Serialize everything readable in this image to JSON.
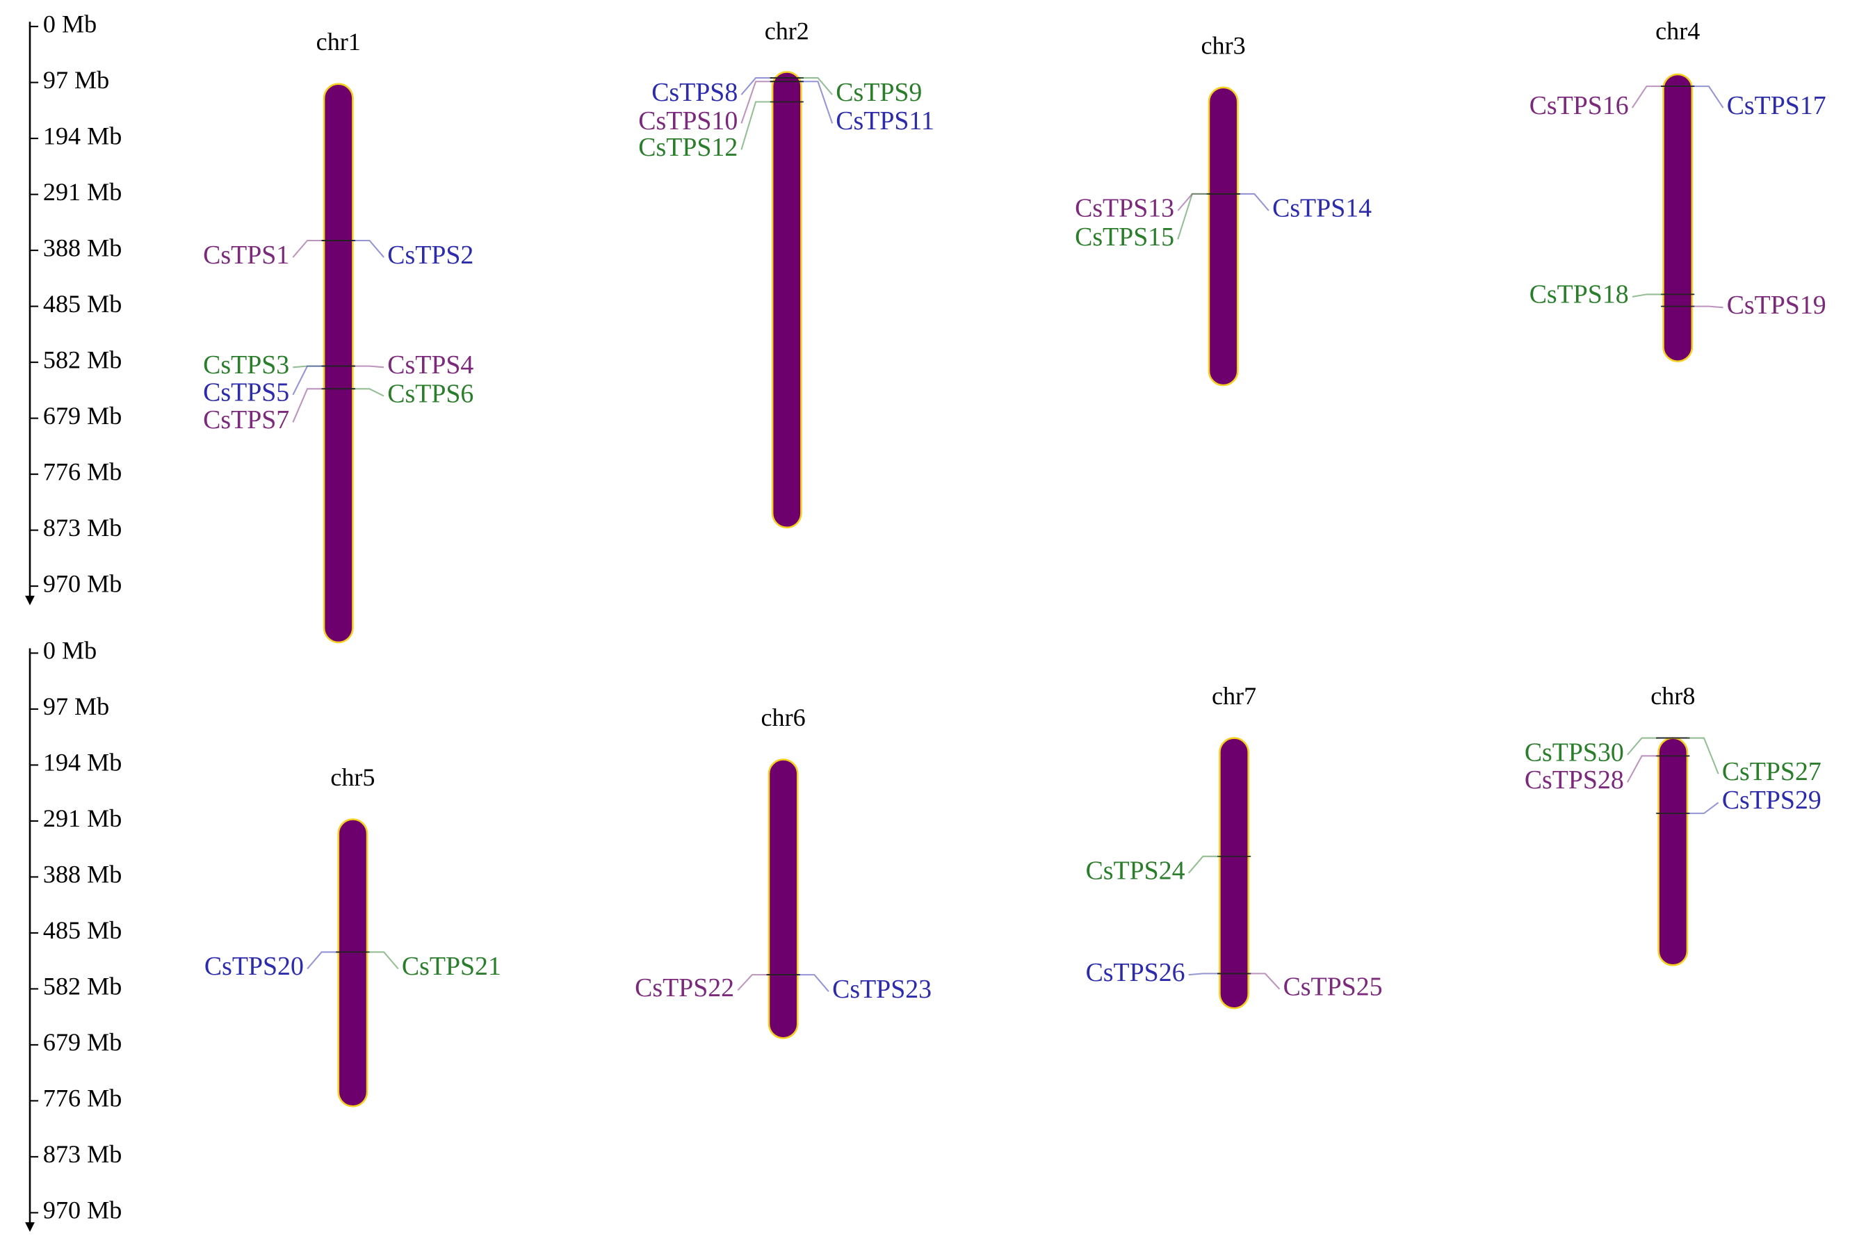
{
  "axes": [
    {
      "ticks": [
        "0 Mb",
        "97 Mb",
        "194 Mb",
        "291 Mb",
        "388 Mb",
        "485 Mb",
        "582 Mb",
        "679 Mb",
        "776 Mb",
        "873 Mb",
        "970 Mb"
      ]
    },
    {
      "ticks": [
        "0 Mb",
        "97 Mb",
        "194 Mb",
        "291 Mb",
        "388 Mb",
        "485 Mb",
        "582 Mb",
        "679 Mb",
        "776 Mb",
        "873 Mb",
        "970 Mb"
      ]
    }
  ],
  "chromosomes": [
    {
      "name": "chr1",
      "genes": [
        {
          "label": "CsTPS1",
          "color": "#7b2a7b"
        },
        {
          "label": "CsTPS2",
          "color": "#2b2bab"
        },
        {
          "label": "CsTPS3",
          "color": "#2a7d2a"
        },
        {
          "label": "CsTPS4",
          "color": "#7b2a7b"
        },
        {
          "label": "CsTPS5",
          "color": "#2b2bab"
        },
        {
          "label": "CsTPS6",
          "color": "#2a7d2a"
        },
        {
          "label": "CsTPS7",
          "color": "#7b2a7b"
        }
      ]
    },
    {
      "name": "chr2",
      "genes": [
        {
          "label": "CsTPS8",
          "color": "#2b2bab"
        },
        {
          "label": "CsTPS9",
          "color": "#2a7d2a"
        },
        {
          "label": "CsTPS10",
          "color": "#7b2a7b"
        },
        {
          "label": "CsTPS11",
          "color": "#2b2bab"
        },
        {
          "label": "CsTPS12",
          "color": "#2a7d2a"
        }
      ]
    },
    {
      "name": "chr3",
      "genes": [
        {
          "label": "CsTPS13",
          "color": "#7b2a7b"
        },
        {
          "label": "CsTPS14",
          "color": "#2b2bab"
        },
        {
          "label": "CsTPS15",
          "color": "#2a7d2a"
        }
      ]
    },
    {
      "name": "chr4",
      "genes": [
        {
          "label": "CsTPS16",
          "color": "#7b2a7b"
        },
        {
          "label": "CsTPS17",
          "color": "#2b2bab"
        },
        {
          "label": "CsTPS18",
          "color": "#2a7d2a"
        },
        {
          "label": "CsTPS19",
          "color": "#7b2a7b"
        }
      ]
    },
    {
      "name": "chr5",
      "genes": [
        {
          "label": "CsTPS20",
          "color": "#2b2bab"
        },
        {
          "label": "CsTPS21",
          "color": "#2a7d2a"
        }
      ]
    },
    {
      "name": "chr6",
      "genes": [
        {
          "label": "CsTPS22",
          "color": "#7b2a7b"
        },
        {
          "label": "CsTPS23",
          "color": "#2b2bab"
        }
      ]
    },
    {
      "name": "chr7",
      "genes": [
        {
          "label": "CsTPS24",
          "color": "#2a7d2a"
        },
        {
          "label": "CsTPS26",
          "color": "#2b2bab"
        },
        {
          "label": "CsTPS25",
          "color": "#7b2a7b"
        }
      ]
    },
    {
      "name": "chr8",
      "genes": [
        {
          "label": "CsTPS30",
          "color": "#2a7d2a"
        },
        {
          "label": "CsTPS27",
          "color": "#2a7d2a"
        },
        {
          "label": "CsTPS28",
          "color": "#7b2a7b"
        },
        {
          "label": "CsTPS29",
          "color": "#2b2bab"
        }
      ]
    }
  ]
}
